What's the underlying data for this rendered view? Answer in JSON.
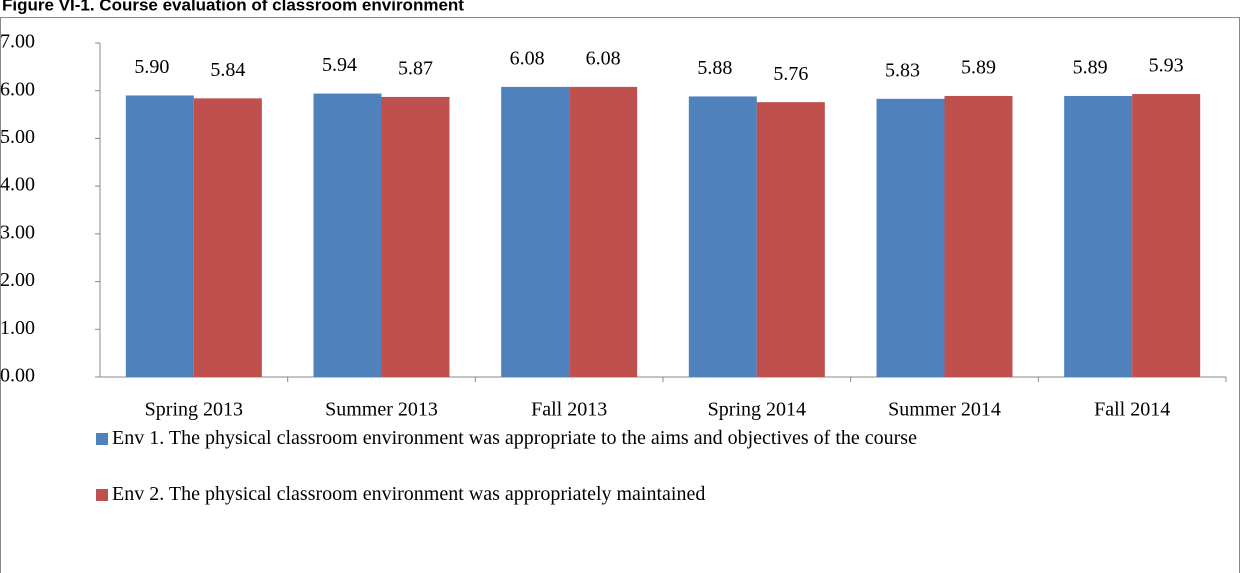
{
  "chart_data": {
    "type": "bar",
    "title": "Figure VI-1. Course evaluation of classroom environment",
    "categories": [
      "Spring 2013",
      "Summer 2013",
      "Fall 2013",
      "Spring 2014",
      "Summer 2014",
      "Fall 2014"
    ],
    "series": [
      {
        "name": "Env 1. The physical classroom environment was appropriate to the aims and objectives of the course",
        "color": "#4f81bd",
        "values": [
          5.9,
          5.94,
          6.08,
          5.88,
          5.83,
          5.89
        ],
        "value_labels": [
          "5.90",
          "5.94",
          "6.08",
          "5.88",
          "5.83",
          "5.89"
        ]
      },
      {
        "name": "Env 2. The physical classroom environment was appropriately maintained",
        "color": "#c0504d",
        "values": [
          5.84,
          5.87,
          6.08,
          5.76,
          5.89,
          5.93
        ],
        "value_labels": [
          "5.84",
          "5.87",
          "6.08",
          "5.76",
          "5.89",
          "5.93"
        ]
      }
    ],
    "ylim": [
      0,
      7
    ],
    "yticks": [
      {
        "value": 0,
        "label": "0.00"
      },
      {
        "value": 1,
        "label": "1.00"
      },
      {
        "value": 2,
        "label": "2.00"
      },
      {
        "value": 3,
        "label": "3.00"
      },
      {
        "value": 4,
        "label": "4.00"
      },
      {
        "value": 5,
        "label": "5.00"
      },
      {
        "value": 6,
        "label": "6.00"
      },
      {
        "value": 7,
        "label": "7.00"
      }
    ],
    "grid": false,
    "legend": "bottom"
  }
}
